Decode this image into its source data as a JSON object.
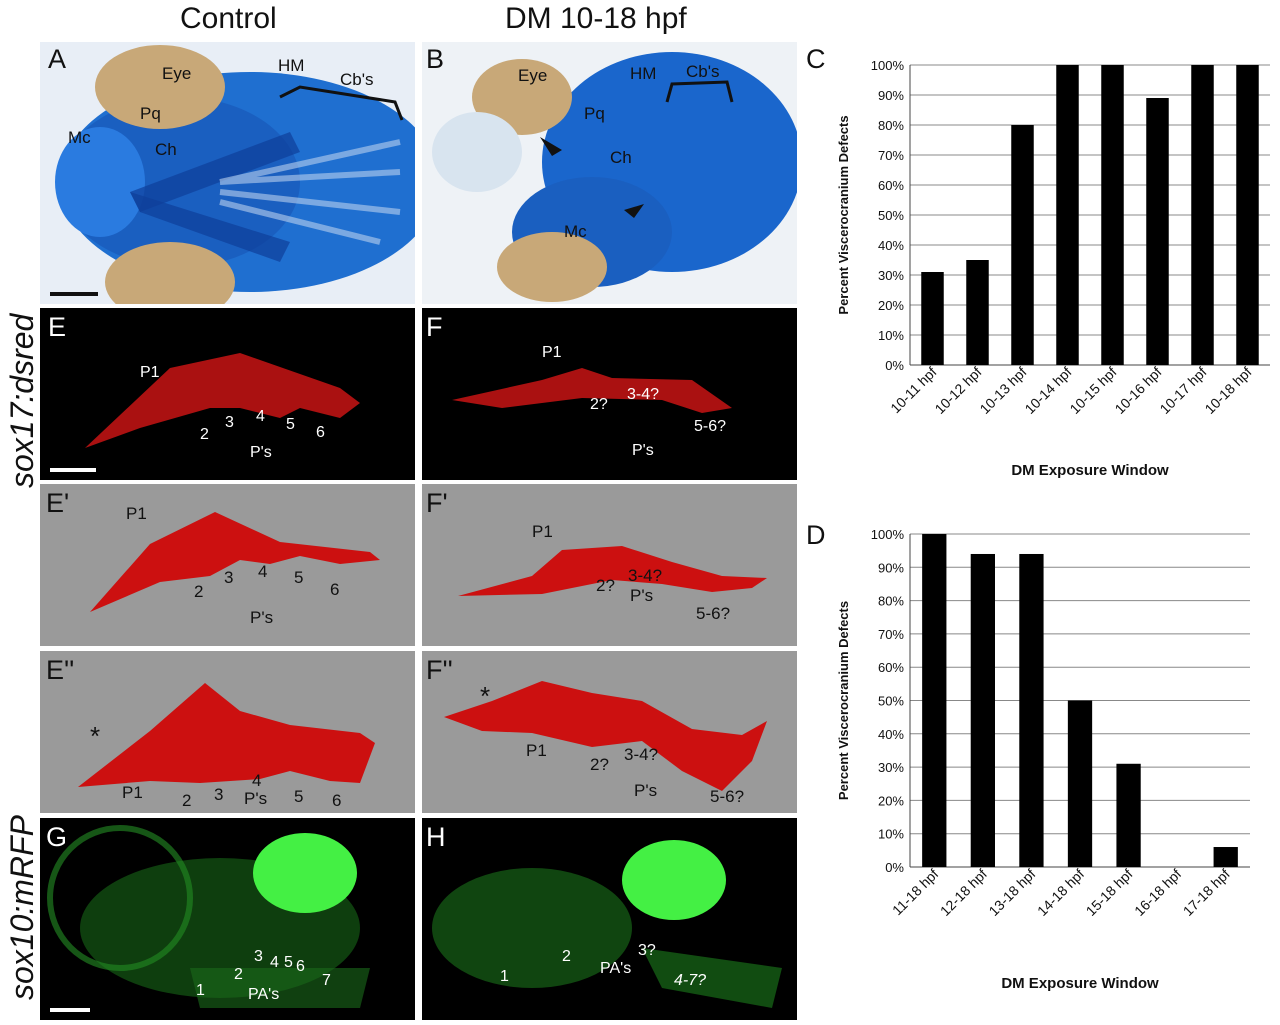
{
  "columns": {
    "left": "Control",
    "right": "DM 10-18 hpf"
  },
  "side_labels": {
    "top": "sox17:dsred",
    "bottom": "sox10:mRFP"
  },
  "panels": {
    "A": {
      "letter": "A",
      "labels": {
        "eye": "Eye",
        "hm": "HM",
        "cbs": "Cb's",
        "pq": "Pq",
        "mc": "Mc",
        "ch": "Ch"
      }
    },
    "B": {
      "letter": "B",
      "labels": {
        "eye": "Eye",
        "hm": "HM",
        "cbs": "Cb's",
        "pq": "Pq",
        "ch": "Ch",
        "mc": "Mc"
      }
    },
    "E": {
      "letter": "E",
      "labels": {
        "p1": "P1",
        "n2": "2",
        "n3": "3",
        "n4": "4",
        "n5": "5",
        "n6": "6",
        "ps": "P's"
      }
    },
    "F": {
      "letter": "F",
      "labels": {
        "p1": "P1",
        "n2": "2?",
        "n34": "3-4?",
        "n56": "5-6?",
        "ps": "P's"
      }
    },
    "E1": {
      "letter": "E'",
      "labels": {
        "p1": "P1",
        "n2": "2",
        "n3": "3",
        "n4": "4",
        "n5": "5",
        "n6": "6",
        "ps": "P's"
      }
    },
    "F1": {
      "letter": "F'",
      "labels": {
        "p1": "P1",
        "n2": "2?",
        "n34": "3-4?",
        "n56": "5-6?",
        "ps": "P's"
      }
    },
    "E2": {
      "letter": "E''",
      "labels": {
        "star": "*",
        "p1": "P1",
        "n2": "2",
        "n3": "3",
        "n4": "4",
        "ps": "P's",
        "n5": "5",
        "n6": "6"
      }
    },
    "F2": {
      "letter": "F''",
      "labels": {
        "star": "*",
        "p1": "P1",
        "n2": "2?",
        "n34": "3-4?",
        "ps": "P's",
        "n56": "5-6?"
      }
    },
    "G": {
      "letter": "G",
      "labels": {
        "n1": "1",
        "n2": "2",
        "n3": "3",
        "n4": "4",
        "n5": "5",
        "n6": "6",
        "n7": "7",
        "pas": "PA's"
      }
    },
    "H": {
      "letter": "H",
      "labels": {
        "n1": "1",
        "n2": "2",
        "n3": "3?",
        "pas": "PA's",
        "n47": "4-7?"
      }
    }
  },
  "colors": {
    "cartilage_blue": "#1560c8",
    "sox17_red": "#e01818",
    "sox10_green": "#39e639",
    "gray_bg": "#9a9a9a"
  },
  "chart_data": [
    {
      "panel": "C",
      "type": "bar",
      "title": "",
      "xlabel": "DM Exposure Window",
      "ylabel": "Percent Viscerocranium Defects",
      "categories": [
        "10-11 hpf",
        "10-12 hpf",
        "10-13 hpf",
        "10-14 hpf",
        "10-15 hpf",
        "10-16 hpf",
        "10-17 hpf",
        "10-18 hpf"
      ],
      "values": [
        31,
        35,
        80,
        100,
        100,
        89,
        100,
        100
      ],
      "ylim": [
        0,
        100
      ],
      "yticks": [
        "0%",
        "10%",
        "20%",
        "30%",
        "40%",
        "50%",
        "60%",
        "70%",
        "80%",
        "90%",
        "100%"
      ],
      "grid": true,
      "bar_color": "#000000"
    },
    {
      "panel": "D",
      "type": "bar",
      "title": "",
      "xlabel": "DM Exposure Window",
      "ylabel": "Percent Viscerocranium Defects",
      "categories": [
        "11-18 hpf",
        "12-18 hpf",
        "13-18 hpf",
        "14-18 hpf",
        "15-18 hpf",
        "16-18 hpf",
        "17-18 hpf"
      ],
      "values": [
        100,
        94,
        94,
        50,
        31,
        0,
        6
      ],
      "ylim": [
        0,
        100
      ],
      "yticks": [
        "0%",
        "10%",
        "20%",
        "30%",
        "40%",
        "50%",
        "60%",
        "70%",
        "80%",
        "90%",
        "100%"
      ],
      "grid": true,
      "bar_color": "#000000"
    }
  ]
}
